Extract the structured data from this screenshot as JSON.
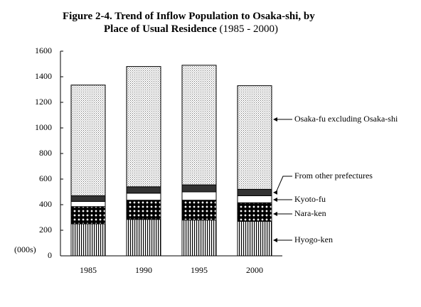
{
  "chart_data": {
    "type": "stacked-bar",
    "title": "Figure 2-4. Trend of Inflow Population to Osaka-shi, by Place of Usual Residence",
    "subtitle": "(1985 - 2000)",
    "y_label": "(000s)",
    "categories": [
      "1985",
      "1990",
      "1995",
      "2000"
    ],
    "series": [
      {
        "name": "Hyogo-ken",
        "color": "#000000",
        "pattern": "vertical-lines",
        "values": [
          250,
          285,
          280,
          270
        ]
      },
      {
        "name": "Nara-ken",
        "color": "#000000",
        "pattern": "crosshatch",
        "values": [
          135,
          150,
          155,
          145
        ]
      },
      {
        "name": "Kyoto-fu",
        "color": "#ffffff",
        "pattern": "solid",
        "values": [
          40,
          55,
          65,
          55
        ]
      },
      {
        "name": "From other prefectures",
        "color": "#333333",
        "pattern": "solid",
        "values": [
          45,
          50,
          55,
          50
        ]
      },
      {
        "name": "Osaka-fu excluding Osaka-shi",
        "color": "#000000",
        "pattern": "dots",
        "values": [
          865,
          940,
          935,
          810
        ]
      }
    ],
    "ylim": [
      0,
      1600
    ],
    "yticks": [
      0,
      200,
      400,
      600,
      800,
      1000,
      1200,
      1400,
      1600
    ],
    "grid": false
  }
}
